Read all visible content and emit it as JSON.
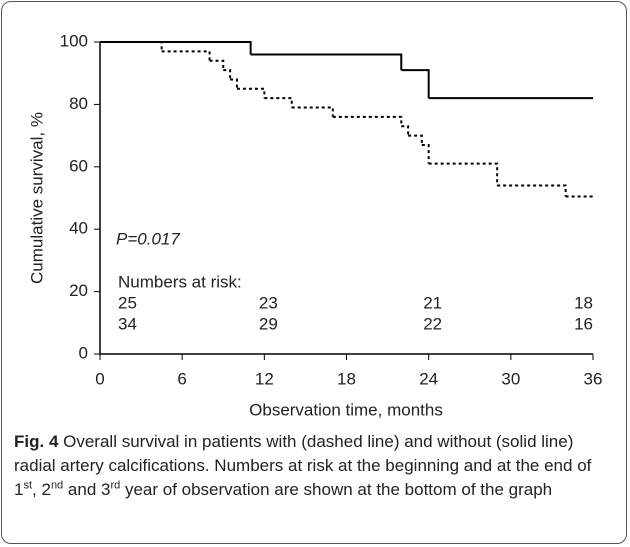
{
  "chart_data": {
    "type": "step",
    "xlabel": "Observation time, months",
    "ylabel": "Cumulative survival, %",
    "xlim": [
      0,
      36
    ],
    "xticks": [
      0,
      6,
      12,
      18,
      24,
      30,
      36
    ],
    "ylim": [
      0,
      100
    ],
    "yticks": [
      0,
      20,
      40,
      60,
      80,
      100
    ],
    "annotation": "P=0.017",
    "series": [
      {
        "color": "#000000",
        "dash": false,
        "x": [
          0,
          11,
          22,
          24,
          36
        ],
        "values": [
          100,
          96,
          91,
          82,
          82
        ]
      },
      {
        "color": "#000000",
        "dash": true,
        "x": [
          0,
          4.5,
          8,
          9,
          9.5,
          10,
          12,
          14,
          17,
          22,
          22.5,
          23.5,
          24,
          29,
          34,
          36
        ],
        "values": [
          100,
          97,
          94,
          91,
          88,
          85,
          82,
          79,
          76,
          73,
          70,
          67,
          61,
          54,
          50.5,
          50.5
        ]
      }
    ],
    "risk_table": {
      "title": "Numbers at risk:",
      "x": [
        0,
        12,
        24,
        36
      ],
      "rows": [
        [
          25,
          23,
          21,
          18
        ],
        [
          34,
          29,
          22,
          16
        ]
      ]
    }
  },
  "caption": {
    "label": "Fig. 4",
    "parts": [
      {
        "text": " Overall survival in patients with (dashed line) and without (solid line) radial artery calcifications. Numbers at risk at the beginning and at the end of 1"
      },
      {
        "text": "st",
        "sup": true
      },
      {
        "text": ", 2"
      },
      {
        "text": "nd",
        "sup": true
      },
      {
        "text": " and 3"
      },
      {
        "text": "rd",
        "sup": true
      },
      {
        "text": " year of observation are shown at the bottom of the graph"
      }
    ]
  }
}
